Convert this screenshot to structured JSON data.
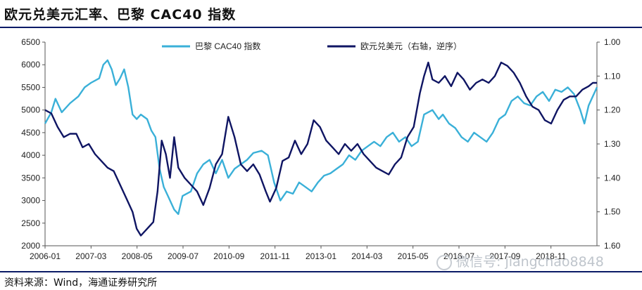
{
  "page": {
    "title": "欧元兑美元汇率、巴黎 CAC40 指数",
    "source": "资料来源：Wind，海通证券研究所",
    "watermark": "微信号: jiangchao8848",
    "watermark_icon": "wechat-icon"
  },
  "chart_data": {
    "type": "line",
    "colors": {
      "cac40": "#3ab0d8",
      "eurusd": "#0f1563"
    },
    "legend": {
      "placement": "top-center",
      "cac40_label": "巴黎 CAC40 指数",
      "eurusd_label": "欧元兑美元（右轴，逆序）"
    },
    "x_ticks": [
      "2006-01",
      "2007-03",
      "2008-05",
      "2009-07",
      "2010-09",
      "2011-11",
      "2013-01",
      "2014-03",
      "2015-05",
      "2016-07",
      "2017-09",
      "2018-11"
    ],
    "x_range": [
      2006.0,
      2019.25
    ],
    "y_left": {
      "ylim": [
        2000,
        6500
      ],
      "ticks": [
        "2000",
        "2500",
        "3000",
        "3500",
        "4000",
        "4500",
        "5000",
        "5500",
        "6000",
        "6500"
      ]
    },
    "y_right": {
      "ylim": [
        1.0,
        1.6
      ],
      "inverted": true,
      "ticks": [
        "1.00",
        "1.10",
        "1.20",
        "1.30",
        "1.40",
        "1.50",
        "1.60"
      ]
    },
    "series": [
      {
        "key": "cac40",
        "name": "巴黎 CAC40 指数",
        "axis": "left",
        "points": [
          [
            2006.0,
            4700
          ],
          [
            2006.15,
            4950
          ],
          [
            2006.25,
            5250
          ],
          [
            2006.4,
            4950
          ],
          [
            2006.6,
            5150
          ],
          [
            2006.8,
            5300
          ],
          [
            2006.95,
            5500
          ],
          [
            2007.1,
            5600
          ],
          [
            2007.3,
            5700
          ],
          [
            2007.4,
            6000
          ],
          [
            2007.5,
            6100
          ],
          [
            2007.6,
            5900
          ],
          [
            2007.7,
            5550
          ],
          [
            2007.8,
            5700
          ],
          [
            2007.9,
            5900
          ],
          [
            2008.0,
            5500
          ],
          [
            2008.1,
            4900
          ],
          [
            2008.2,
            4800
          ],
          [
            2008.3,
            4900
          ],
          [
            2008.45,
            4800
          ],
          [
            2008.55,
            4550
          ],
          [
            2008.65,
            4400
          ],
          [
            2008.75,
            3700
          ],
          [
            2008.85,
            3300
          ],
          [
            2008.95,
            3100
          ],
          [
            2009.1,
            2800
          ],
          [
            2009.2,
            2700
          ],
          [
            2009.3,
            3100
          ],
          [
            2009.5,
            3200
          ],
          [
            2009.65,
            3600
          ],
          [
            2009.8,
            3800
          ],
          [
            2009.95,
            3900
          ],
          [
            2010.1,
            3600
          ],
          [
            2010.25,
            3900
          ],
          [
            2010.4,
            3500
          ],
          [
            2010.55,
            3700
          ],
          [
            2010.7,
            3800
          ],
          [
            2010.85,
            3900
          ],
          [
            2011.0,
            4050
          ],
          [
            2011.2,
            4100
          ],
          [
            2011.35,
            4000
          ],
          [
            2011.5,
            3400
          ],
          [
            2011.65,
            3000
          ],
          [
            2011.8,
            3200
          ],
          [
            2011.95,
            3150
          ],
          [
            2012.1,
            3400
          ],
          [
            2012.25,
            3300
          ],
          [
            2012.4,
            3200
          ],
          [
            2012.55,
            3400
          ],
          [
            2012.7,
            3550
          ],
          [
            2012.85,
            3600
          ],
          [
            2013.0,
            3700
          ],
          [
            2013.15,
            3800
          ],
          [
            2013.3,
            4000
          ],
          [
            2013.45,
            3900
          ],
          [
            2013.6,
            4100
          ],
          [
            2013.75,
            4200
          ],
          [
            2013.9,
            4300
          ],
          [
            2014.05,
            4200
          ],
          [
            2014.2,
            4400
          ],
          [
            2014.35,
            4500
          ],
          [
            2014.5,
            4300
          ],
          [
            2014.65,
            4400
          ],
          [
            2014.8,
            4200
          ],
          [
            2014.95,
            4300
          ],
          [
            2015.1,
            4900
          ],
          [
            2015.3,
            5000
          ],
          [
            2015.45,
            4800
          ],
          [
            2015.55,
            4900
          ],
          [
            2015.7,
            4700
          ],
          [
            2015.85,
            4600
          ],
          [
            2016.0,
            4400
          ],
          [
            2016.15,
            4300
          ],
          [
            2016.3,
            4500
          ],
          [
            2016.45,
            4400
          ],
          [
            2016.6,
            4300
          ],
          [
            2016.75,
            4500
          ],
          [
            2016.9,
            4800
          ],
          [
            2017.05,
            4900
          ],
          [
            2017.2,
            5200
          ],
          [
            2017.35,
            5300
          ],
          [
            2017.5,
            5150
          ],
          [
            2017.65,
            5100
          ],
          [
            2017.8,
            5300
          ],
          [
            2017.95,
            5400
          ],
          [
            2018.1,
            5200
          ],
          [
            2018.25,
            5450
          ],
          [
            2018.4,
            5400
          ],
          [
            2018.55,
            5500
          ],
          [
            2018.7,
            5350
          ],
          [
            2018.85,
            5000
          ],
          [
            2018.95,
            4700
          ],
          [
            2019.05,
            5100
          ],
          [
            2019.15,
            5300
          ],
          [
            2019.25,
            5500
          ]
        ]
      },
      {
        "key": "eurusd",
        "name": "欧元兑美元（右轴，逆序）",
        "axis": "right",
        "points": [
          [
            2006.0,
            1.2
          ],
          [
            2006.15,
            1.21
          ],
          [
            2006.3,
            1.25
          ],
          [
            2006.45,
            1.28
          ],
          [
            2006.6,
            1.27
          ],
          [
            2006.75,
            1.27
          ],
          [
            2006.9,
            1.31
          ],
          [
            2007.05,
            1.3
          ],
          [
            2007.2,
            1.33
          ],
          [
            2007.35,
            1.35
          ],
          [
            2007.5,
            1.37
          ],
          [
            2007.65,
            1.38
          ],
          [
            2007.8,
            1.42
          ],
          [
            2007.95,
            1.46
          ],
          [
            2008.1,
            1.5
          ],
          [
            2008.2,
            1.55
          ],
          [
            2008.3,
            1.57
          ],
          [
            2008.45,
            1.55
          ],
          [
            2008.6,
            1.53
          ],
          [
            2008.7,
            1.44
          ],
          [
            2008.8,
            1.29
          ],
          [
            2008.9,
            1.33
          ],
          [
            2009.0,
            1.4
          ],
          [
            2009.1,
            1.28
          ],
          [
            2009.2,
            1.37
          ],
          [
            2009.35,
            1.4
          ],
          [
            2009.5,
            1.42
          ],
          [
            2009.65,
            1.44
          ],
          [
            2009.8,
            1.48
          ],
          [
            2009.95,
            1.43
          ],
          [
            2010.1,
            1.36
          ],
          [
            2010.25,
            1.33
          ],
          [
            2010.4,
            1.22
          ],
          [
            2010.55,
            1.28
          ],
          [
            2010.7,
            1.36
          ],
          [
            2010.85,
            1.38
          ],
          [
            2011.0,
            1.36
          ],
          [
            2011.15,
            1.39
          ],
          [
            2011.3,
            1.44
          ],
          [
            2011.4,
            1.47
          ],
          [
            2011.55,
            1.43
          ],
          [
            2011.7,
            1.35
          ],
          [
            2011.85,
            1.34
          ],
          [
            2012.0,
            1.29
          ],
          [
            2012.15,
            1.33
          ],
          [
            2012.3,
            1.3
          ],
          [
            2012.45,
            1.23
          ],
          [
            2012.6,
            1.25
          ],
          [
            2012.75,
            1.29
          ],
          [
            2012.9,
            1.31
          ],
          [
            2013.05,
            1.33
          ],
          [
            2013.2,
            1.3
          ],
          [
            2013.35,
            1.32
          ],
          [
            2013.5,
            1.3
          ],
          [
            2013.65,
            1.33
          ],
          [
            2013.8,
            1.35
          ],
          [
            2013.95,
            1.37
          ],
          [
            2014.1,
            1.38
          ],
          [
            2014.25,
            1.39
          ],
          [
            2014.4,
            1.36
          ],
          [
            2014.55,
            1.34
          ],
          [
            2014.7,
            1.28
          ],
          [
            2014.85,
            1.25
          ],
          [
            2015.0,
            1.15
          ],
          [
            2015.1,
            1.1
          ],
          [
            2015.2,
            1.06
          ],
          [
            2015.3,
            1.11
          ],
          [
            2015.45,
            1.12
          ],
          [
            2015.6,
            1.1
          ],
          [
            2015.75,
            1.13
          ],
          [
            2015.9,
            1.09
          ],
          [
            2016.05,
            1.11
          ],
          [
            2016.2,
            1.14
          ],
          [
            2016.35,
            1.12
          ],
          [
            2016.5,
            1.11
          ],
          [
            2016.65,
            1.12
          ],
          [
            2016.8,
            1.1
          ],
          [
            2016.95,
            1.06
          ],
          [
            2017.1,
            1.07
          ],
          [
            2017.25,
            1.09
          ],
          [
            2017.4,
            1.12
          ],
          [
            2017.55,
            1.16
          ],
          [
            2017.7,
            1.19
          ],
          [
            2017.85,
            1.2
          ],
          [
            2018.0,
            1.23
          ],
          [
            2018.15,
            1.24
          ],
          [
            2018.3,
            1.2
          ],
          [
            2018.45,
            1.17
          ],
          [
            2018.6,
            1.16
          ],
          [
            2018.75,
            1.16
          ],
          [
            2018.9,
            1.14
          ],
          [
            2019.05,
            1.13
          ],
          [
            2019.15,
            1.12
          ],
          [
            2019.25,
            1.12
          ]
        ]
      }
    ]
  }
}
